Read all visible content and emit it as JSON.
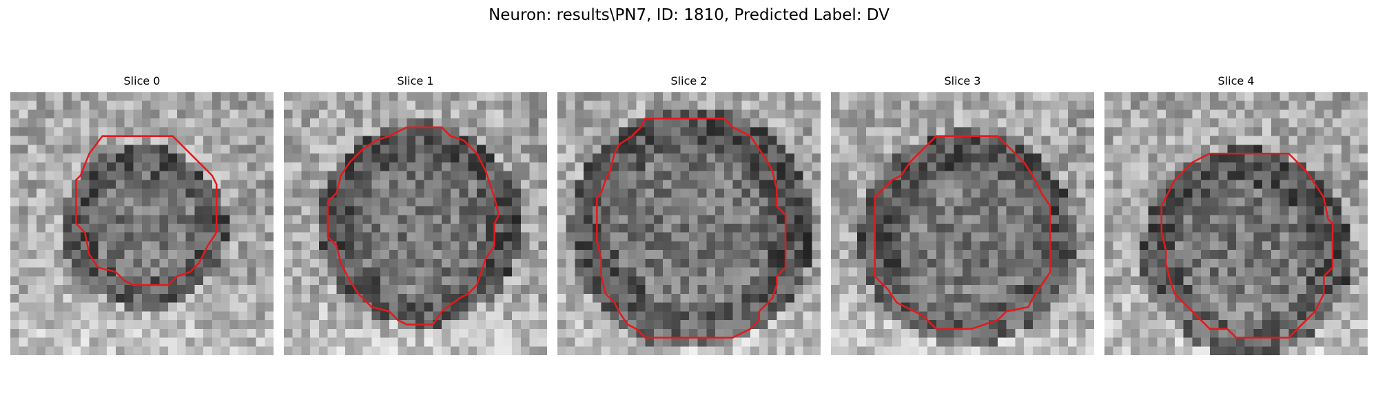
{
  "figure": {
    "title": "Neuron: results\\PN7, ID: 1810, Predicted Label: DV"
  },
  "colors": {
    "contour": "#e31a1c",
    "background": "#ffffff"
  },
  "image_grid": {
    "rows": 30,
    "cols": 30
  },
  "panels": [
    {
      "title": "Slice 0",
      "seed": 11
    },
    {
      "title": "Slice 1",
      "seed": 23
    },
    {
      "title": "Slice 2",
      "seed": 37
    },
    {
      "title": "Slice 3",
      "seed": 51
    },
    {
      "title": "Slice 4",
      "seed": 67
    }
  ]
}
